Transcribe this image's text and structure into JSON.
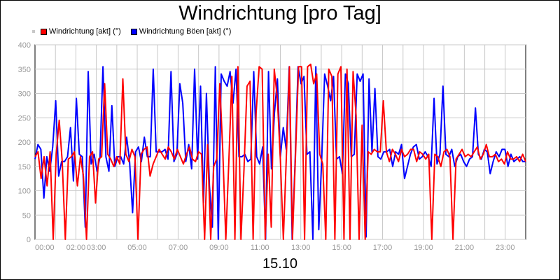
{
  "chart_data": {
    "type": "line",
    "title": "Windrichtung [pro Tag]",
    "xlabel": "15.10",
    "ylabel": "",
    "ylim": [
      0,
      400
    ],
    "yticks": [
      0,
      50,
      100,
      150,
      200,
      250,
      300,
      350,
      400
    ],
    "xlim_hours": [
      0,
      24
    ],
    "xticks": [
      {
        "hour": 0,
        "label": "00:00"
      },
      {
        "hour": 2,
        "label": "02:00"
      },
      {
        "hour": 3,
        "label": "03:00"
      },
      {
        "hour": 5,
        "label": "05:00"
      },
      {
        "hour": 7,
        "label": "07:00"
      },
      {
        "hour": 9,
        "label": "09:00"
      },
      {
        "hour": 11,
        "label": "11:00"
      },
      {
        "hour": 13,
        "label": "13:00"
      },
      {
        "hour": 15,
        "label": "15:00"
      },
      {
        "hour": 17,
        "label": "17:00"
      },
      {
        "hour": 19,
        "label": "19:00"
      },
      {
        "hour": 21,
        "label": "21:00"
      },
      {
        "hour": 23,
        "label": "23:00"
      }
    ],
    "grid": true,
    "legend_position": "top-left",
    "colors": {
      "gust": "#0000ff",
      "actual": "#ff0000",
      "grid": "#c8c8c8",
      "tick_text": "#9a9a9a"
    },
    "series": [
      {
        "name": "Windrichtung Böen [akt] (°)",
        "color": "#0000ff",
        "values": [
          165,
          195,
          185,
          85,
          170,
          140,
          190,
          285,
          130,
          160,
          160,
          170,
          230,
          120,
          290,
          175,
          170,
          25,
          345,
          155,
          175,
          140,
          170,
          355,
          170,
          140,
          275,
          150,
          170,
          170,
          155,
          210,
          160,
          55,
          180,
          190,
          160,
          210,
          170,
          170,
          350,
          180,
          180,
          180,
          185,
          165,
          345,
          160,
          175,
          320,
          280,
          160,
          195,
          145,
          350,
          165,
          315,
          75,
          300,
          110,
          25,
          355,
          0,
          340,
          325,
          315,
          345,
          280,
          350,
          170,
          170,
          175,
          160,
          165,
          345,
          170,
          155,
          190,
          0,
          345,
          145,
          260,
          330,
          170,
          230,
          185,
          355,
          0,
          160,
          355,
          320,
          335,
          175,
          180,
          0,
          355,
          20,
          165,
          340,
          315,
          285,
          335,
          165,
          170,
          135,
          340,
          320,
          170,
          175,
          340,
          325,
          340,
          5,
          330,
          180,
          310,
          170,
          165,
          180,
          180,
          185,
          150,
          180,
          175,
          195,
          125,
          150,
          175,
          190,
          195,
          165,
          170,
          180,
          170,
          150,
          290,
          155,
          175,
          315,
          175,
          170,
          185,
          150,
          170,
          175,
          160,
          150,
          165,
          170,
          270,
          175,
          165,
          185,
          180,
          135,
          160,
          180,
          170,
          185,
          185,
          150,
          175,
          160,
          165,
          170,
          160,
          160
        ]
      },
      {
        "name": "Windrichtung [akt] (°)",
        "color": "#ff0000",
        "values": [
          170,
          180,
          125,
          170,
          110,
          180,
          0,
          175,
          245,
          160,
          0,
          165,
          170,
          180,
          110,
          170,
          130,
          0,
          170,
          180,
          75,
          165,
          170,
          320,
          175,
          165,
          150,
          170,
          155,
          330,
          175,
          160,
          185,
          170,
          0,
          175,
          185,
          190,
          130,
          155,
          170,
          185,
          175,
          165,
          190,
          180,
          165,
          185,
          170,
          155,
          175,
          190,
          165,
          160,
          180,
          175,
          0,
          195,
          0,
          150,
          165,
          320,
          180,
          0,
          160,
          335,
          0,
          355,
          0,
          145,
          315,
          325,
          0,
          260,
          355,
          350,
          0,
          175,
          25,
          350,
          290,
          165,
          0,
          175,
          355,
          0,
          170,
          355,
          355,
          0,
          355,
          360,
          320,
          340,
          175,
          155,
          0,
          350,
          335,
          0,
          340,
          355,
          0,
          350,
          0,
          345,
          255,
          0,
          235,
          0,
          180,
          175,
          185,
          180,
          180,
          285,
          180,
          160,
          185,
          175,
          160,
          185,
          170,
          175,
          185,
          185,
          160,
          180,
          175,
          165,
          175,
          0,
          175,
          170,
          150,
          180,
          185,
          170,
          0,
          165,
          175,
          185,
          170,
          175,
          170,
          180,
          190,
          165,
          175,
          195,
          170,
          170,
          175,
          160,
          165,
          155,
          180,
          165,
          165,
          170,
          160,
          175,
          160
        ]
      }
    ]
  }
}
